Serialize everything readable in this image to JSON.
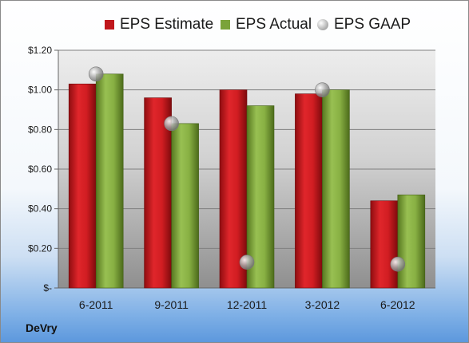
{
  "chart_data": {
    "type": "bar",
    "categories": [
      "6-2011",
      "9-2011",
      "12-2011",
      "3-2012",
      "6-2012"
    ],
    "series": [
      {
        "name": "EPS Estimate",
        "kind": "bar",
        "values": [
          1.03,
          0.96,
          1.0,
          0.98,
          0.44
        ],
        "color": "#c0161b"
      },
      {
        "name": "EPS Actual",
        "kind": "bar",
        "values": [
          1.08,
          0.83,
          0.92,
          1.0,
          0.47
        ],
        "color": "#7aa33a"
      },
      {
        "name": "EPS GAAP",
        "kind": "marker",
        "values": [
          1.08,
          0.83,
          0.13,
          1.0,
          0.12
        ],
        "color": "#a8a8a8"
      }
    ],
    "yticks": [
      "$-",
      "$0.20",
      "$0.40",
      "$0.60",
      "$0.80",
      "$1.00",
      "$1.20"
    ],
    "ylim": [
      0,
      1.2
    ],
    "grid": true,
    "legend_position": "top"
  },
  "footer": {
    "company": "DeVry"
  }
}
